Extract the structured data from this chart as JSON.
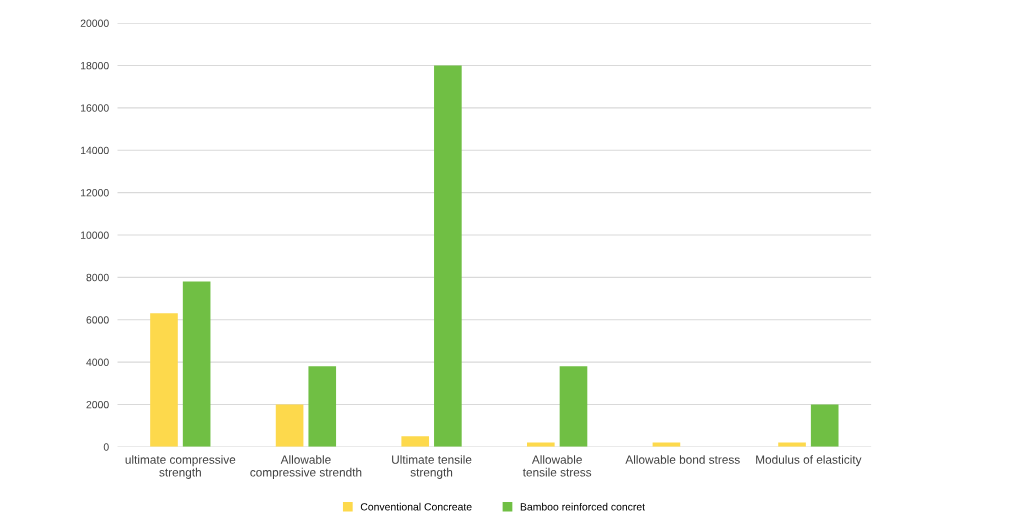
{
  "chart_data": {
    "type": "bar",
    "categories": [
      "ultimate compressive\nstrength",
      "Allowable\ncompressive strendth",
      "Ultimate tensile\nstrength",
      "Allowable\ntensile stress",
      "Allowable bond stress",
      "Modulus of elasticity"
    ],
    "series": [
      {
        "name": "Conventional Concreate",
        "color": "#fdd94c",
        "values": [
          6300,
          2000,
          500,
          200,
          200,
          200
        ]
      },
      {
        "name": "Bamboo reinforced concret",
        "color": "#70bf44",
        "values": [
          7800,
          3800,
          18000,
          3800,
          null,
          2000
        ]
      }
    ],
    "ylim": [
      0,
      20000
    ],
    "yticks": [
      0,
      2000,
      4000,
      6000,
      8000,
      10000,
      12000,
      14000,
      16000,
      18000,
      20000
    ],
    "grid": "y",
    "legend": "bottom"
  }
}
